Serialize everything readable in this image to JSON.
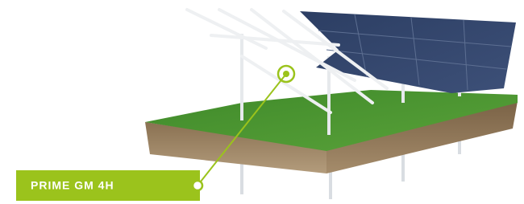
{
  "label": {
    "text": "PRIME GM 4H"
  }
}
